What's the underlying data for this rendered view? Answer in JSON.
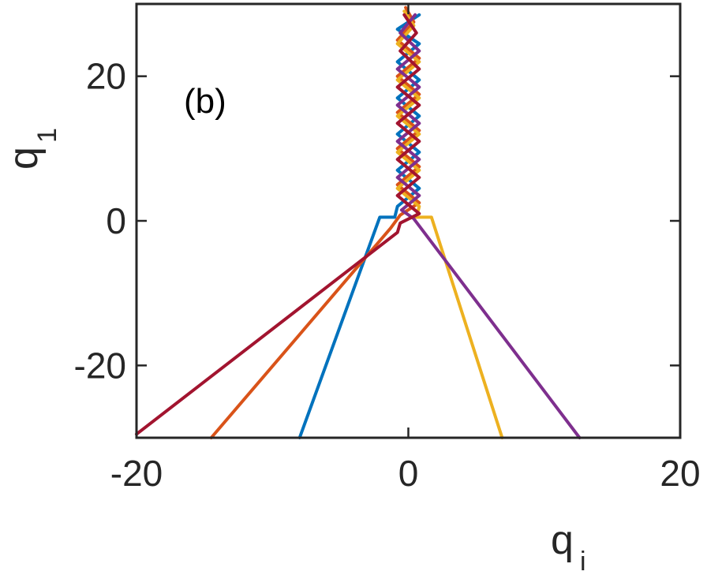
{
  "chart_data": {
    "type": "line",
    "panel_label": "(b)",
    "xlabel": {
      "base": "q",
      "sub": "i"
    },
    "ylabel": {
      "base": "q",
      "sub": "1"
    },
    "xlim": [
      -20,
      20
    ],
    "ylim": [
      -30,
      30
    ],
    "xticks": [
      {
        "value": -20,
        "label": "-20"
      },
      {
        "value": 0,
        "label": "0"
      },
      {
        "value": 20,
        "label": "20"
      }
    ],
    "yticks": [
      {
        "value": -20,
        "label": "-20"
      },
      {
        "value": 0,
        "label": "0"
      },
      {
        "value": 20,
        "label": "20"
      }
    ],
    "grid": false,
    "series": [
      {
        "color": "#0072BD",
        "points": [
          [
            -8.0,
            -30
          ],
          [
            -2.1,
            0.5
          ],
          [
            -1.0,
            0.5
          ],
          [
            -0.8,
            2
          ],
          [
            0.8,
            4.5
          ],
          [
            -0.8,
            7
          ],
          [
            0.8,
            9.5
          ],
          [
            -0.8,
            12
          ],
          [
            0.8,
            14.5
          ],
          [
            -0.8,
            17
          ],
          [
            0.8,
            19.5
          ],
          [
            -0.8,
            22
          ],
          [
            0.8,
            24.5
          ],
          [
            -0.8,
            26.5
          ],
          [
            0.8,
            28.5
          ]
        ]
      },
      {
        "color": "#D95319",
        "points": [
          [
            -14.5,
            -30
          ],
          [
            -1.3,
            -1.0
          ],
          [
            -0.6,
            0.8
          ],
          [
            0.8,
            2.5
          ],
          [
            -0.8,
            5
          ],
          [
            0.8,
            7.5
          ],
          [
            -0.8,
            10
          ],
          [
            0.8,
            12.5
          ],
          [
            -0.8,
            15
          ],
          [
            0.8,
            17.5
          ],
          [
            -0.8,
            20
          ],
          [
            0.8,
            22.5
          ],
          [
            -0.8,
            25
          ],
          [
            0.4,
            27.5
          ],
          [
            -0.2,
            29.5
          ]
        ]
      },
      {
        "color": "#EDB120",
        "points": [
          [
            6.9,
            -30
          ],
          [
            1.7,
            0.5
          ],
          [
            0.6,
            0.5
          ],
          [
            0.8,
            2
          ],
          [
            -0.8,
            4.5
          ],
          [
            0.8,
            7
          ],
          [
            -0.8,
            9.5
          ],
          [
            0.8,
            12
          ],
          [
            -0.8,
            14.5
          ],
          [
            0.8,
            17
          ],
          [
            -0.8,
            19.5
          ],
          [
            0.8,
            22
          ],
          [
            -0.8,
            24.5
          ],
          [
            0.4,
            27
          ],
          [
            -0.3,
            29
          ]
        ]
      },
      {
        "color": "#7E2F8E",
        "points": [
          [
            12.6,
            -30
          ],
          [
            0.4,
            0.3
          ],
          [
            -0.5,
            1.5
          ],
          [
            0.8,
            3.5
          ],
          [
            -0.8,
            6
          ],
          [
            0.8,
            8.5
          ],
          [
            -0.8,
            11
          ],
          [
            0.8,
            13.5
          ],
          [
            -0.8,
            16
          ],
          [
            0.8,
            18.5
          ],
          [
            -0.8,
            21
          ],
          [
            0.8,
            23.5
          ],
          [
            -0.6,
            26
          ],
          [
            0.5,
            28.5
          ]
        ]
      },
      {
        "color": "#A2142F",
        "points": [
          [
            -20.0,
            -29.5
          ],
          [
            -0.8,
            -1.6
          ],
          [
            -0.6,
            -0.3
          ],
          [
            0.8,
            1.0
          ],
          [
            -0.8,
            3.5
          ],
          [
            0.8,
            6
          ],
          [
            -0.8,
            8.5
          ],
          [
            0.8,
            11
          ],
          [
            -0.8,
            13.5
          ],
          [
            0.8,
            16
          ],
          [
            -0.8,
            18.5
          ],
          [
            0.8,
            21
          ],
          [
            -0.6,
            23.5
          ],
          [
            0.6,
            26
          ],
          [
            -0.3,
            28.5
          ]
        ]
      }
    ]
  }
}
